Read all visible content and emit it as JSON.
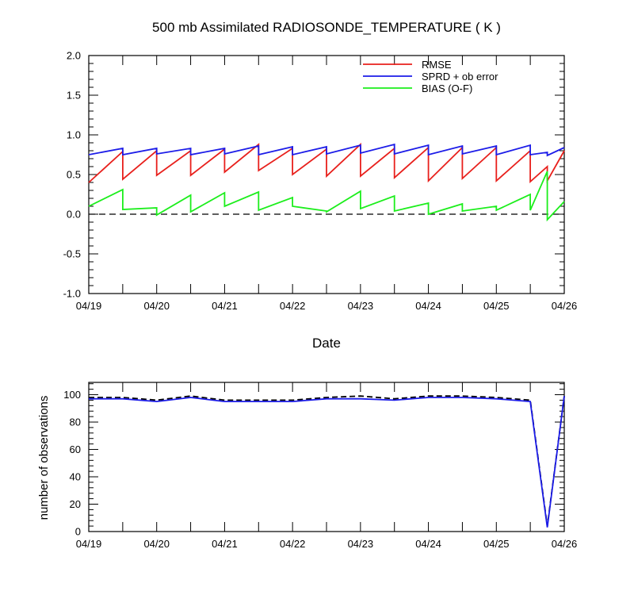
{
  "chart_data": [
    {
      "type": "line",
      "title": "500 mb Assimilated RADIOSONDE_TEMPERATURE ( K )",
      "xlabel": "Date",
      "ylabel": "",
      "ylim": [
        -1.0,
        2.0
      ],
      "xlim": [
        "04/19 00Z",
        "04/26 00Z"
      ],
      "y_ticks": [
        "2.0",
        "1.5",
        "1.0",
        "0.5",
        "0.0",
        "-0.5",
        "-1.0"
      ],
      "x_ticks": [
        "04/19",
        "04/20",
        "04/21",
        "04/22",
        "04/23",
        "04/24",
        "04/25",
        "04/26"
      ],
      "grid": false,
      "legend": "top-right",
      "reference_line": 0.0,
      "x_units": "days since 04/19 00Z",
      "series": [
        {
          "name": "RMSE",
          "color": "#e8201c",
          "x": [
            0,
            0.5,
            0.5,
            1.0,
            1.0,
            1.5,
            1.5,
            2.0,
            2.0,
            2.5,
            2.5,
            3.0,
            3.0,
            3.5,
            3.5,
            4.0,
            4.0,
            4.5,
            4.5,
            5.0,
            5.0,
            5.5,
            5.5,
            6.0,
            6.0,
            6.5,
            6.5,
            6.75,
            6.75,
            7.0
          ],
          "values": [
            0.4,
            0.79,
            0.44,
            0.8,
            0.49,
            0.8,
            0.49,
            0.82,
            0.53,
            0.88,
            0.55,
            0.83,
            0.5,
            0.82,
            0.48,
            0.88,
            0.48,
            0.83,
            0.46,
            0.84,
            0.42,
            0.84,
            0.45,
            0.84,
            0.42,
            0.8,
            0.41,
            0.6,
            0.42,
            0.8
          ]
        },
        {
          "name": "SPRD + ob error",
          "color": "#1c1ce8",
          "x": [
            0,
            0.5,
            0.5,
            1.0,
            1.0,
            1.5,
            1.5,
            2.0,
            2.0,
            2.5,
            2.5,
            3.0,
            3.0,
            3.5,
            3.5,
            4.0,
            4.0,
            4.5,
            4.5,
            5.0,
            5.0,
            5.5,
            5.5,
            6.0,
            6.0,
            6.5,
            6.5,
            6.75,
            6.75,
            7.0
          ],
          "values": [
            0.75,
            0.83,
            0.75,
            0.83,
            0.76,
            0.83,
            0.75,
            0.83,
            0.76,
            0.86,
            0.75,
            0.85,
            0.75,
            0.85,
            0.76,
            0.87,
            0.77,
            0.88,
            0.76,
            0.87,
            0.75,
            0.86,
            0.76,
            0.86,
            0.75,
            0.87,
            0.75,
            0.78,
            0.74,
            0.84
          ]
        },
        {
          "name": "BIAS (O-F)",
          "color": "#1cee1c",
          "x": [
            0,
            0.5,
            0.5,
            1.0,
            1.0,
            1.5,
            1.5,
            2.0,
            2.0,
            2.5,
            2.5,
            3.0,
            3.0,
            3.5,
            3.5,
            4.0,
            4.0,
            4.5,
            4.5,
            5.0,
            5.0,
            5.5,
            5.5,
            6.0,
            6.0,
            6.5,
            6.5,
            6.75,
            6.75,
            7.0
          ],
          "values": [
            0.1,
            0.31,
            0.06,
            0.08,
            -0.01,
            0.24,
            0.03,
            0.27,
            0.1,
            0.28,
            0.05,
            0.21,
            0.1,
            0.04,
            0.03,
            0.29,
            0.07,
            0.23,
            0.04,
            0.14,
            0.0,
            0.13,
            0.04,
            0.1,
            0.05,
            0.25,
            0.05,
            0.54,
            -0.07,
            0.16
          ]
        }
      ]
    },
    {
      "type": "line",
      "title": "",
      "xlabel": "",
      "ylabel": "number of observations",
      "ylim": [
        0,
        109
      ],
      "xlim": [
        "04/19 00Z",
        "04/26 00Z"
      ],
      "y_ticks": [
        "100",
        "80",
        "60",
        "40",
        "20",
        "0"
      ],
      "x_ticks": [
        "04/19",
        "04/20",
        "04/21",
        "04/22",
        "04/23",
        "04/24",
        "04/25",
        "04/26"
      ],
      "grid": false,
      "x_units": "days since 04/19 00Z",
      "series": [
        {
          "name": "",
          "color": "#000000",
          "dashed": true,
          "x": [
            0,
            0.5,
            1.0,
            1.5,
            2.0,
            2.5,
            3.0,
            3.5,
            4.0,
            4.5,
            5.0,
            5.5,
            6.0,
            6.5,
            6.75,
            7.0
          ],
          "values": [
            98,
            98,
            96,
            99,
            96,
            96,
            96,
            98,
            99,
            97,
            99,
            99,
            98,
            96,
            4,
            99
          ]
        },
        {
          "name": "",
          "color": "#1c1ce8",
          "dashed": false,
          "x": [
            0,
            0.5,
            1.0,
            1.5,
            2.0,
            2.5,
            3.0,
            3.5,
            4.0,
            4.5,
            5.0,
            5.5,
            6.0,
            6.5,
            6.75,
            7.0
          ],
          "values": [
            97,
            97,
            95,
            98,
            95,
            95,
            95,
            97,
            97,
            96,
            98,
            98,
            97,
            95,
            3,
            99
          ]
        }
      ]
    }
  ]
}
